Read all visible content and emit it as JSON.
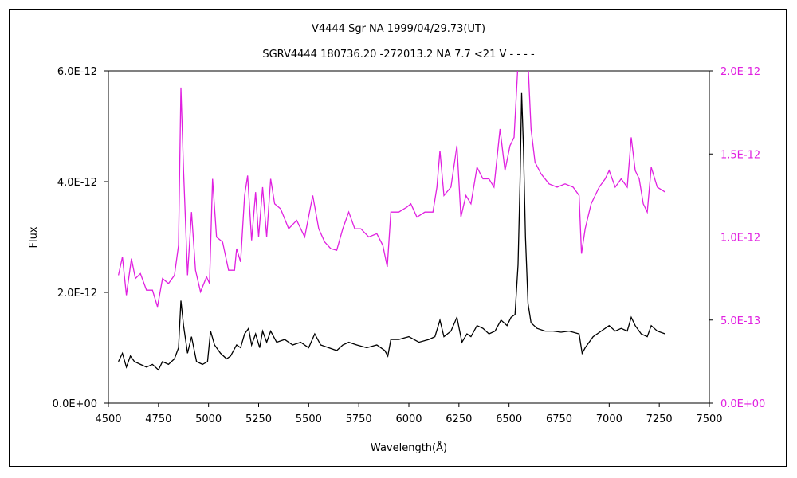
{
  "chart_data": {
    "type": "line",
    "title": "V4444 Sgr    NA    1999/04/29.73(UT)",
    "subtitle": "SGRV4444 180736.20 -272013.2 NA 7.7 <21  V - - - -",
    "xlabel": "Wavelength(Å)",
    "ylabel": "Flux",
    "xlim": [
      4500,
      7500
    ],
    "ylim_left": [
      0,
      6e-12
    ],
    "ylim_right": [
      0,
      2e-12
    ],
    "x_ticks": [
      "4500",
      "4750",
      "5000",
      "5250",
      "5500",
      "5750",
      "6000",
      "6250",
      "6500",
      "6750",
      "7000",
      "7250",
      "7500"
    ],
    "y_ticks_left": [
      "0.0E+00",
      "2.0E-12",
      "4.0E-12",
      "6.0E-12"
    ],
    "y_ticks_right": [
      "0.0E+00",
      "5.0E-13",
      "1.0E-12",
      "1.5E-12",
      "2.0E-12"
    ],
    "grid": false,
    "series": [
      {
        "axis": "left",
        "color": "#000000",
        "points": [
          [
            4550,
            7.5e-13
          ],
          [
            4570,
            9e-13
          ],
          [
            4590,
            6.5e-13
          ],
          [
            4610,
            8.5e-13
          ],
          [
            4630,
            7.5e-13
          ],
          [
            4660,
            7e-13
          ],
          [
            4690,
            6.5e-13
          ],
          [
            4720,
            7e-13
          ],
          [
            4750,
            6e-13
          ],
          [
            4770,
            7.5e-13
          ],
          [
            4800,
            7e-13
          ],
          [
            4830,
            8e-13
          ],
          [
            4850,
            1e-12
          ],
          [
            4862,
            1.85e-12
          ],
          [
            4875,
            1.4e-12
          ],
          [
            4895,
            9e-13
          ],
          [
            4915,
            1.2e-12
          ],
          [
            4940,
            7.5e-13
          ],
          [
            4970,
            7e-13
          ],
          [
            4995,
            7.5e-13
          ],
          [
            5010,
            1.3e-12
          ],
          [
            5030,
            1.05e-12
          ],
          [
            5060,
            9e-13
          ],
          [
            5090,
            8e-13
          ],
          [
            5110,
            8.5e-13
          ],
          [
            5140,
            1.05e-12
          ],
          [
            5160,
            1e-12
          ],
          [
            5180,
            1.25e-12
          ],
          [
            5200,
            1.35e-12
          ],
          [
            5215,
            1.05e-12
          ],
          [
            5235,
            1.25e-12
          ],
          [
            5255,
            1e-12
          ],
          [
            5270,
            1.3e-12
          ],
          [
            5290,
            1.1e-12
          ],
          [
            5310,
            1.3e-12
          ],
          [
            5340,
            1.1e-12
          ],
          [
            5380,
            1.15e-12
          ],
          [
            5420,
            1.05e-12
          ],
          [
            5460,
            1.1e-12
          ],
          [
            5500,
            1e-12
          ],
          [
            5530,
            1.25e-12
          ],
          [
            5560,
            1.05e-12
          ],
          [
            5600,
            1e-12
          ],
          [
            5640,
            9.5e-13
          ],
          [
            5670,
            1.05e-12
          ],
          [
            5700,
            1.1e-12
          ],
          [
            5740,
            1.05e-12
          ],
          [
            5790,
            1e-12
          ],
          [
            5840,
            1.05e-12
          ],
          [
            5880,
            9.5e-13
          ],
          [
            5895,
            8.5e-13
          ],
          [
            5910,
            1.15e-12
          ],
          [
            5950,
            1.15e-12
          ],
          [
            6000,
            1.2e-12
          ],
          [
            6050,
            1.1e-12
          ],
          [
            6100,
            1.15e-12
          ],
          [
            6130,
            1.2e-12
          ],
          [
            6155,
            1.5e-12
          ],
          [
            6175,
            1.2e-12
          ],
          [
            6210,
            1.3e-12
          ],
          [
            6240,
            1.55e-12
          ],
          [
            6265,
            1.1e-12
          ],
          [
            6290,
            1.25e-12
          ],
          [
            6310,
            1.2e-12
          ],
          [
            6340,
            1.4e-12
          ],
          [
            6370,
            1.35e-12
          ],
          [
            6400,
            1.25e-12
          ],
          [
            6430,
            1.3e-12
          ],
          [
            6460,
            1.5e-12
          ],
          [
            6490,
            1.4e-12
          ],
          [
            6510,
            1.55e-12
          ],
          [
            6530,
            1.6e-12
          ],
          [
            6545,
            2.5e-12
          ],
          [
            6555,
            4e-12
          ],
          [
            6563,
            5.6e-12
          ],
          [
            6572,
            4.6e-12
          ],
          [
            6582,
            3e-12
          ],
          [
            6595,
            1.8e-12
          ],
          [
            6610,
            1.45e-12
          ],
          [
            6640,
            1.35e-12
          ],
          [
            6680,
            1.3e-12
          ],
          [
            6720,
            1.3e-12
          ],
          [
            6760,
            1.28e-12
          ],
          [
            6800,
            1.3e-12
          ],
          [
            6850,
            1.25e-12
          ],
          [
            6865,
            9e-13
          ],
          [
            6880,
            1e-12
          ],
          [
            6920,
            1.2e-12
          ],
          [
            6960,
            1.3e-12
          ],
          [
            7000,
            1.4e-12
          ],
          [
            7030,
            1.3e-12
          ],
          [
            7060,
            1.35e-12
          ],
          [
            7090,
            1.3e-12
          ],
          [
            7110,
            1.55e-12
          ],
          [
            7130,
            1.4e-12
          ],
          [
            7160,
            1.25e-12
          ],
          [
            7190,
            1.2e-12
          ],
          [
            7210,
            1.4e-12
          ],
          [
            7240,
            1.3e-12
          ],
          [
            7280,
            1.25e-12
          ]
        ]
      },
      {
        "axis": "right",
        "color": "#e020e0",
        "points": [
          [
            4550,
            7.7e-13
          ],
          [
            4570,
            8.8e-13
          ],
          [
            4590,
            6.5e-13
          ],
          [
            4615,
            8.7e-13
          ],
          [
            4635,
            7.5e-13
          ],
          [
            4660,
            7.8e-13
          ],
          [
            4690,
            6.8e-13
          ],
          [
            4720,
            6.8e-13
          ],
          [
            4745,
            5.8e-13
          ],
          [
            4770,
            7.5e-13
          ],
          [
            4800,
            7.2e-13
          ],
          [
            4830,
            7.7e-13
          ],
          [
            4850,
            9.5e-13
          ],
          [
            4862,
            1.9e-12
          ],
          [
            4875,
            1.4e-12
          ],
          [
            4895,
            7.7e-13
          ],
          [
            4915,
            1.15e-12
          ],
          [
            4935,
            8e-13
          ],
          [
            4960,
            6.7e-13
          ],
          [
            4990,
            7.6e-13
          ],
          [
            5005,
            7.2e-13
          ],
          [
            5020,
            1.35e-12
          ],
          [
            5040,
            1e-12
          ],
          [
            5070,
            9.7e-13
          ],
          [
            5100,
            8e-13
          ],
          [
            5130,
            8e-13
          ],
          [
            5140,
            9.3e-13
          ],
          [
            5160,
            8.5e-13
          ],
          [
            5180,
            1.25e-12
          ],
          [
            5195,
            1.37e-12
          ],
          [
            5215,
            9.8e-13
          ],
          [
            5235,
            1.27e-12
          ],
          [
            5250,
            1e-12
          ],
          [
            5270,
            1.3e-12
          ],
          [
            5290,
            1e-12
          ],
          [
            5310,
            1.35e-12
          ],
          [
            5330,
            1.2e-12
          ],
          [
            5360,
            1.17e-12
          ],
          [
            5400,
            1.05e-12
          ],
          [
            5440,
            1.1e-12
          ],
          [
            5480,
            1e-12
          ],
          [
            5520,
            1.25e-12
          ],
          [
            5550,
            1.05e-12
          ],
          [
            5580,
            9.7e-13
          ],
          [
            5610,
            9.3e-13
          ],
          [
            5640,
            9.2e-13
          ],
          [
            5670,
            1.05e-12
          ],
          [
            5700,
            1.15e-12
          ],
          [
            5730,
            1.05e-12
          ],
          [
            5760,
            1.05e-12
          ],
          [
            5800,
            1e-12
          ],
          [
            5840,
            1.02e-12
          ],
          [
            5870,
            9.5e-13
          ],
          [
            5892,
            8.2e-13
          ],
          [
            5910,
            1.15e-12
          ],
          [
            5950,
            1.15e-12
          ],
          [
            5990,
            1.18e-12
          ],
          [
            6010,
            1.2e-12
          ],
          [
            6040,
            1.12e-12
          ],
          [
            6080,
            1.15e-12
          ],
          [
            6120,
            1.15e-12
          ],
          [
            6140,
            1.3e-12
          ],
          [
            6155,
            1.52e-12
          ],
          [
            6175,
            1.25e-12
          ],
          [
            6210,
            1.3e-12
          ],
          [
            6240,
            1.55e-12
          ],
          [
            6260,
            1.12e-12
          ],
          [
            6285,
            1.25e-12
          ],
          [
            6310,
            1.2e-12
          ],
          [
            6340,
            1.42e-12
          ],
          [
            6370,
            1.35e-12
          ],
          [
            6400,
            1.35e-12
          ],
          [
            6425,
            1.3e-12
          ],
          [
            6455,
            1.65e-12
          ],
          [
            6480,
            1.4e-12
          ],
          [
            6505,
            1.55e-12
          ],
          [
            6525,
            1.6e-12
          ],
          [
            6545,
            2.05e-12
          ],
          [
            6595,
            2.05e-12
          ],
          [
            6610,
            1.65e-12
          ],
          [
            6630,
            1.45e-12
          ],
          [
            6660,
            1.38e-12
          ],
          [
            6700,
            1.32e-12
          ],
          [
            6740,
            1.3e-12
          ],
          [
            6780,
            1.32e-12
          ],
          [
            6820,
            1.3e-12
          ],
          [
            6850,
            1.25e-12
          ],
          [
            6862,
            9e-13
          ],
          [
            6880,
            1.05e-12
          ],
          [
            6910,
            1.2e-12
          ],
          [
            6950,
            1.3e-12
          ],
          [
            6980,
            1.35e-12
          ],
          [
            7000,
            1.4e-12
          ],
          [
            7030,
            1.3e-12
          ],
          [
            7060,
            1.35e-12
          ],
          [
            7090,
            1.3e-12
          ],
          [
            7110,
            1.6e-12
          ],
          [
            7130,
            1.4e-12
          ],
          [
            7150,
            1.35e-12
          ],
          [
            7170,
            1.2e-12
          ],
          [
            7190,
            1.15e-12
          ],
          [
            7210,
            1.42e-12
          ],
          [
            7240,
            1.3e-12
          ],
          [
            7280,
            1.27e-12
          ]
        ]
      }
    ]
  }
}
